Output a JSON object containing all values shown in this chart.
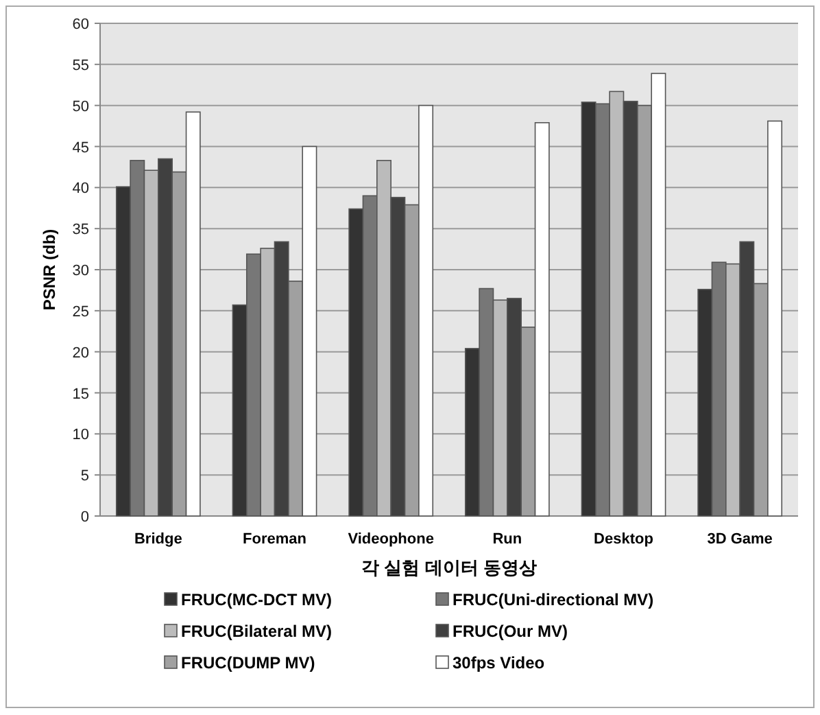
{
  "chart_data": {
    "type": "bar",
    "ylabel": "PSNR (db)",
    "xlabel": "각 실험 데이터 동영상",
    "categories": [
      "Bridge",
      "Foreman",
      "Videophone",
      "Run",
      "Desktop",
      "3D Game"
    ],
    "series": [
      {
        "name": "FRUC(MC-DCT MV)",
        "color": "#333333",
        "values": [
          40.1,
          25.7,
          37.4,
          20.4,
          50.4,
          27.6
        ]
      },
      {
        "name": "FRUC(Uni-directional MV)",
        "color": "#777777",
        "values": [
          43.3,
          31.9,
          39.0,
          27.7,
          50.2,
          30.9
        ]
      },
      {
        "name": "FRUC(Bilateral MV)",
        "color": "#bbbbbb",
        "values": [
          42.1,
          32.6,
          43.3,
          26.3,
          51.7,
          30.7
        ]
      },
      {
        "name": "FRUC(Our MV)",
        "color": "#404040",
        "values": [
          43.5,
          33.4,
          38.8,
          26.5,
          50.5,
          33.4
        ]
      },
      {
        "name": "FRUC(DUMP MV)",
        "color": "#a0a0a0",
        "values": [
          41.9,
          28.6,
          37.9,
          23.0,
          50.0,
          28.3
        ]
      },
      {
        "name": "30fps Video",
        "color": "#ffffff",
        "values": [
          49.2,
          45.0,
          50.0,
          47.9,
          53.9,
          48.1
        ]
      }
    ],
    "ylim": [
      0,
      60
    ],
    "yticks": [
      0,
      5,
      10,
      15,
      20,
      25,
      30,
      35,
      40,
      45,
      50,
      55,
      60
    ],
    "grid": "y",
    "legend": "bottom"
  }
}
